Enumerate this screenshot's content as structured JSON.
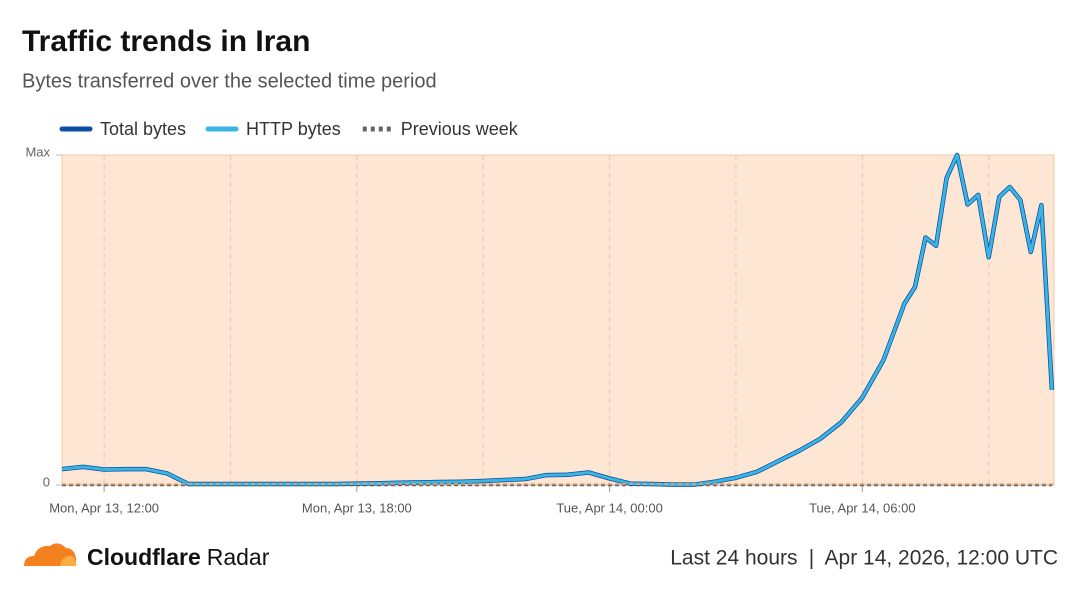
{
  "chart_data": {
    "type": "line",
    "title": "Traffic trends in Iran",
    "subtitle": "Bytes transferred over the selected time period",
    "x": [
      "2026-04-13T11:00",
      "2026-04-13T11:30",
      "2026-04-13T12:00",
      "2026-04-13T12:30",
      "2026-04-13T13:00",
      "2026-04-13T13:30",
      "2026-04-13T14:00",
      "2026-04-13T14:30",
      "2026-04-13T15:00",
      "2026-04-13T15:30",
      "2026-04-13T16:00",
      "2026-04-13T16:30",
      "2026-04-13T17:00",
      "2026-04-13T17:30",
      "2026-04-13T18:00",
      "2026-04-13T18:30",
      "2026-04-13T19:00",
      "2026-04-13T19:30",
      "2026-04-13T20:00",
      "2026-04-13T20:30",
      "2026-04-13T21:00",
      "2026-04-13T21:30",
      "2026-04-13T22:00",
      "2026-04-13T22:30",
      "2026-04-13T23:00",
      "2026-04-13T23:30",
      "2026-04-14T00:00",
      "2026-04-14T00:30",
      "2026-04-14T01:00",
      "2026-04-14T01:30",
      "2026-04-14T02:00",
      "2026-04-14T02:30",
      "2026-04-14T03:00",
      "2026-04-14T03:30",
      "2026-04-14T04:00",
      "2026-04-14T04:30",
      "2026-04-14T05:00",
      "2026-04-14T05:30",
      "2026-04-14T06:00",
      "2026-04-14T06:30",
      "2026-04-14T07:00",
      "2026-04-14T07:15",
      "2026-04-14T07:30",
      "2026-04-14T07:45",
      "2026-04-14T08:00",
      "2026-04-14T08:15",
      "2026-04-14T08:30",
      "2026-04-14T08:45",
      "2026-04-14T09:00",
      "2026-04-14T09:15",
      "2026-04-14T09:30",
      "2026-04-14T09:45",
      "2026-04-14T10:00",
      "2026-04-14T10:15",
      "2026-04-14T10:30"
    ],
    "series": [
      {
        "name": "Total bytes",
        "color": "#0b4ea2",
        "values": [
          0.048,
          0.055,
          0.047,
          0.048,
          0.048,
          0.035,
          0.003,
          0.003,
          0.003,
          0.003,
          0.003,
          0.003,
          0.003,
          0.003,
          0.004,
          0.005,
          0.007,
          0.008,
          0.009,
          0.01,
          0.012,
          0.015,
          0.018,
          0.03,
          0.031,
          0.038,
          0.02,
          0.004,
          0.003,
          0.001,
          0.001,
          0.01,
          0.022,
          0.04,
          0.072,
          0.104,
          0.14,
          0.19,
          0.265,
          0.378,
          0.55,
          0.6,
          0.75,
          0.725,
          0.93,
          1.0,
          0.85,
          0.879,
          0.69,
          0.873,
          0.903,
          0.864,
          0.706,
          0.848,
          0.288
        ]
      },
      {
        "name": "HTTP bytes",
        "color": "#3ab4e2",
        "values": [
          0.048,
          0.055,
          0.047,
          0.048,
          0.048,
          0.035,
          0.003,
          0.003,
          0.003,
          0.003,
          0.003,
          0.003,
          0.003,
          0.003,
          0.004,
          0.005,
          0.007,
          0.008,
          0.009,
          0.01,
          0.012,
          0.015,
          0.018,
          0.03,
          0.031,
          0.038,
          0.02,
          0.004,
          0.003,
          0.001,
          0.001,
          0.01,
          0.022,
          0.04,
          0.072,
          0.104,
          0.14,
          0.19,
          0.265,
          0.378,
          0.55,
          0.6,
          0.75,
          0.725,
          0.93,
          1.0,
          0.85,
          0.879,
          0.69,
          0.873,
          0.903,
          0.864,
          0.706,
          0.848,
          0.288
        ]
      },
      {
        "name": "Previous week",
        "color": "#666666",
        "dashed": true,
        "values": [
          0,
          0,
          0,
          0,
          0,
          0,
          0,
          0,
          0,
          0,
          0,
          0,
          0,
          0,
          0,
          0,
          0,
          0,
          0,
          0,
          0,
          0,
          0,
          0,
          0,
          0,
          0,
          0,
          0,
          0,
          0,
          0,
          0,
          0,
          0,
          0,
          0,
          0,
          0,
          0,
          0,
          0,
          0,
          0,
          0,
          0,
          0,
          0,
          0,
          0,
          0,
          0,
          0,
          0,
          0
        ]
      }
    ],
    "xlim": [
      "2026-04-13T11:00",
      "2026-04-14T10:33"
    ],
    "xticks": [
      {
        "value": "2026-04-13T12:00",
        "label": "Mon, Apr 13, 12:00"
      },
      {
        "value": "2026-04-13T18:00",
        "label": "Mon, Apr 13, 18:00"
      },
      {
        "value": "2026-04-14T00:00",
        "label": "Tue, Apr 14, 00:00"
      },
      {
        "value": "2026-04-14T06:00",
        "label": "Tue, Apr 14, 06:00"
      }
    ],
    "xgrid": [
      "2026-04-13T12:00",
      "2026-04-13T15:00",
      "2026-04-13T18:00",
      "2026-04-13T21:00",
      "2026-04-14T00:00",
      "2026-04-14T03:00",
      "2026-04-14T06:00",
      "2026-04-14T09:00"
    ],
    "ylim": [
      0,
      1
    ],
    "yticks": [
      0,
      {
        "value": 1,
        "label": "Max"
      }
    ],
    "plot_background": "#fde6d3",
    "legend": "top-left"
  },
  "footer": {
    "brand": "Cloudflare",
    "product": "Radar",
    "period": "Last 24 hours",
    "separator": "|",
    "timestamp": "Apr 14, 2026, 12:00 UTC"
  }
}
